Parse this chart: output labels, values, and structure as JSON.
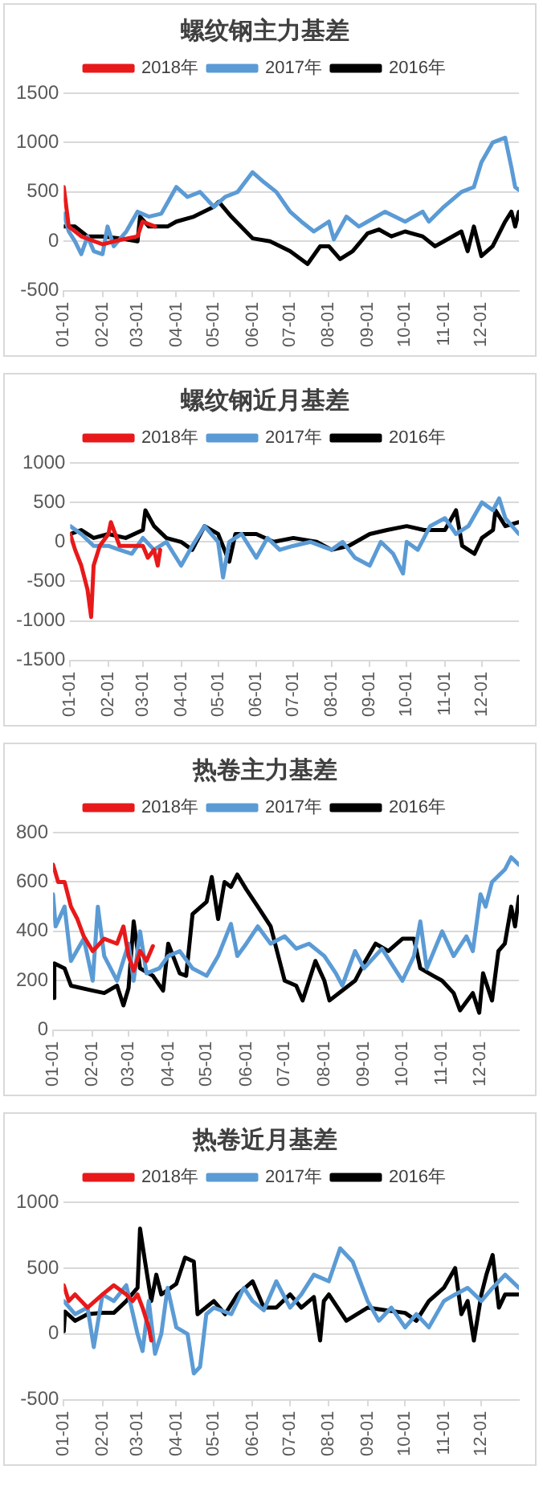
{
  "chart_data": [
    {
      "type": "line",
      "title": "螺纹钢主力基差",
      "legend": "top",
      "grid": "y",
      "marker": "none",
      "xlim": [
        "--01-01",
        "--12-31"
      ],
      "xticks": [
        {
          "value": "--01-01",
          "label": "01-01"
        },
        {
          "value": "--02-01",
          "label": "02-01"
        },
        {
          "value": "--03-01",
          "label": "03-01"
        },
        {
          "value": "--04-01",
          "label": "04-01"
        },
        {
          "value": "--05-01",
          "label": "05-01"
        },
        {
          "value": "--06-01",
          "label": "06-01"
        },
        {
          "value": "--07-01",
          "label": "07-01"
        },
        {
          "value": "--08-01",
          "label": "08-01"
        },
        {
          "value": "--09-01",
          "label": "09-01"
        },
        {
          "value": "--10-01",
          "label": "10-01"
        },
        {
          "value": "--11-01",
          "label": "11-01"
        },
        {
          "value": "--12-01",
          "label": "12-01"
        }
      ],
      "ylim": [
        -500,
        1500
      ],
      "yticks": [
        -500,
        0,
        500,
        1000,
        1500
      ],
      "series": [
        {
          "name": "2018年",
          "color": "#e8191a",
          "x": [
            "--01-01",
            "--01-05",
            "--01-15",
            "--02-01",
            "--02-10",
            "--03-01",
            "--03-05",
            "--03-15"
          ],
          "values": [
            550,
            150,
            50,
            -30,
            0,
            50,
            200,
            150
          ]
        },
        {
          "name": "2017年",
          "color": "#5b9bd5",
          "x": [
            "--01-01",
            "--01-05",
            "--01-10",
            "--01-15",
            "--01-20",
            "--01-25",
            "--02-01",
            "--02-05",
            "--02-10",
            "--02-20",
            "--03-01",
            "--03-10",
            "--03-20",
            "--04-01",
            "--04-10",
            "--04-20",
            "--05-01",
            "--05-10",
            "--05-20",
            "--06-01",
            "--06-10",
            "--06-20",
            "--07-01",
            "--07-10",
            "--07-20",
            "--08-01",
            "--08-05",
            "--08-15",
            "--08-25",
            "--09-01",
            "--09-15",
            "--10-01",
            "--10-15",
            "--10-20",
            "--11-01",
            "--11-15",
            "--11-25",
            "--12-01",
            "--12-10",
            "--12-20",
            "--12-25",
            "--12-28",
            "--12-31"
          ],
          "values": [
            280,
            100,
            0,
            -130,
            50,
            -100,
            -130,
            150,
            -50,
            100,
            300,
            250,
            280,
            550,
            450,
            500,
            350,
            450,
            500,
            700,
            600,
            500,
            300,
            200,
            100,
            200,
            20,
            250,
            150,
            200,
            300,
            200,
            300,
            200,
            350,
            500,
            550,
            800,
            1000,
            1050,
            750,
            550,
            520
          ]
        },
        {
          "name": "2016年",
          "color": "#000000",
          "x": [
            "--01-01",
            "--01-10",
            "--01-20",
            "--02-01",
            "--02-15",
            "--03-01",
            "--03-03",
            "--03-10",
            "--03-25",
            "--04-01",
            "--04-15",
            "--05-01",
            "--05-05",
            "--05-15",
            "--06-01",
            "--06-15",
            "--07-01",
            "--07-15",
            "--07-25",
            "--08-01",
            "--08-10",
            "--08-20",
            "--09-01",
            "--09-10",
            "--09-20",
            "--10-01",
            "--10-15",
            "--10-25",
            "--11-01",
            "--11-15",
            "--11-20",
            "--11-25",
            "--12-01",
            "--12-10",
            "--12-20",
            "--12-25",
            "--12-28",
            "--12-31"
          ],
          "values": [
            150,
            150,
            50,
            50,
            30,
            0,
            250,
            150,
            150,
            200,
            250,
            350,
            400,
            250,
            30,
            0,
            -100,
            -230,
            -50,
            -50,
            -180,
            -100,
            80,
            120,
            50,
            100,
            50,
            -50,
            0,
            100,
            -100,
            150,
            -150,
            -50,
            200,
            300,
            150,
            300
          ]
        }
      ]
    },
    {
      "type": "line",
      "title": "螺纹钢近月基差",
      "legend": "top",
      "grid": "y",
      "marker": "none",
      "xlim": [
        "--01-01",
        "--12-31"
      ],
      "xticks": [
        {
          "value": "--01-01",
          "label": "01-01"
        },
        {
          "value": "--02-01",
          "label": "02-01"
        },
        {
          "value": "--03-01",
          "label": "03-01"
        },
        {
          "value": "--04-01",
          "label": "04-01"
        },
        {
          "value": "--05-01",
          "label": "05-01"
        },
        {
          "value": "--06-01",
          "label": "06-01"
        },
        {
          "value": "--07-01",
          "label": "07-01"
        },
        {
          "value": "--08-01",
          "label": "08-01"
        },
        {
          "value": "--09-01",
          "label": "09-01"
        },
        {
          "value": "--10-01",
          "label": "10-01"
        },
        {
          "value": "--11-01",
          "label": "11-01"
        },
        {
          "value": "--12-01",
          "label": "12-01"
        }
      ],
      "ylim": [
        -1500,
        1000
      ],
      "yticks": [
        -1500,
        -1000,
        -500,
        0,
        500,
        1000
      ],
      "series": [
        {
          "name": "2018年",
          "color": "#e8191a",
          "x": [
            "--01-01",
            "--01-05",
            "--01-10",
            "--01-15",
            "--01-18",
            "--01-20",
            "--01-25",
            "--02-01",
            "--02-03",
            "--02-10",
            "--02-15",
            "--03-01",
            "--03-05",
            "--03-10",
            "--03-13",
            "--03-15"
          ],
          "values": [
            100,
            -100,
            -300,
            -600,
            -950,
            -300,
            -50,
            100,
            250,
            -50,
            -50,
            -50,
            -200,
            -100,
            -300,
            -100
          ]
        },
        {
          "name": "2017年",
          "color": "#5b9bd5",
          "x": [
            "--01-01",
            "--01-10",
            "--01-20",
            "--02-01",
            "--02-10",
            "--02-20",
            "--03-01",
            "--03-10",
            "--03-20",
            "--04-01",
            "--04-10",
            "--04-20",
            "--05-01",
            "--05-05",
            "--05-10",
            "--05-20",
            "--06-01",
            "--06-10",
            "--06-20",
            "--07-01",
            "--07-15",
            "--08-01",
            "--08-10",
            "--08-20",
            "--09-01",
            "--09-10",
            "--09-20",
            "--09-28",
            "--10-01",
            "--10-10",
            "--10-20",
            "--11-01",
            "--11-10",
            "--11-20",
            "--12-01",
            "--12-10",
            "--12-15",
            "--12-20",
            "--12-31"
          ],
          "values": [
            200,
            100,
            -50,
            -50,
            -100,
            -150,
            50,
            -100,
            0,
            -300,
            -50,
            200,
            0,
            -450,
            0,
            100,
            -200,
            50,
            -100,
            -50,
            0,
            -100,
            0,
            -200,
            -300,
            0,
            -150,
            -400,
            0,
            -100,
            200,
            300,
            100,
            200,
            500,
            400,
            550,
            300,
            100
          ]
        },
        {
          "name": "2016年",
          "color": "#000000",
          "x": [
            "--01-01",
            "--01-10",
            "--01-20",
            "--02-01",
            "--02-15",
            "--03-01",
            "--03-03",
            "--03-10",
            "--03-20",
            "--04-01",
            "--04-10",
            "--04-20",
            "--05-01",
            "--05-10",
            "--05-15",
            "--06-01",
            "--06-15",
            "--07-01",
            "--07-20",
            "--08-01",
            "--08-15",
            "--09-01",
            "--09-15",
            "--10-01",
            "--10-15",
            "--11-01",
            "--11-10",
            "--11-15",
            "--11-25",
            "--12-01",
            "--12-10",
            "--12-12",
            "--12-20",
            "--12-31"
          ],
          "values": [
            100,
            150,
            50,
            100,
            50,
            150,
            400,
            200,
            50,
            0,
            -100,
            200,
            100,
            -250,
            100,
            100,
            0,
            50,
            0,
            -100,
            -50,
            100,
            150,
            200,
            150,
            150,
            400,
            -50,
            -150,
            50,
            150,
            400,
            200,
            250
          ]
        }
      ]
    },
    {
      "type": "line",
      "title": "热卷主力基差",
      "legend": "top",
      "grid": "y",
      "marker": "none",
      "xlim": [
        "--01-01",
        "--12-31"
      ],
      "xticks": [
        {
          "value": "--01-01",
          "label": "01-01"
        },
        {
          "value": "--02-01",
          "label": "02-01"
        },
        {
          "value": "--03-01",
          "label": "03-01"
        },
        {
          "value": "--04-01",
          "label": "04-01"
        },
        {
          "value": "--05-01",
          "label": "05-01"
        },
        {
          "value": "--06-01",
          "label": "06-01"
        },
        {
          "value": "--07-01",
          "label": "07-01"
        },
        {
          "value": "--08-01",
          "label": "08-01"
        },
        {
          "value": "--09-01",
          "label": "09-01"
        },
        {
          "value": "--10-01",
          "label": "10-01"
        },
        {
          "value": "--11-01",
          "label": "11-01"
        },
        {
          "value": "--12-01",
          "label": "12-01"
        }
      ],
      "ylim": [
        0,
        800
      ],
      "yticks": [
        0,
        200,
        400,
        600,
        800
      ],
      "series": [
        {
          "name": "2018年",
          "color": "#e8191a",
          "x": [
            "--01-01",
            "--01-05",
            "--01-10",
            "--01-15",
            "--01-20",
            "--01-25",
            "--02-01",
            "--02-10",
            "--02-20",
            "--02-25",
            "--03-01",
            "--03-05",
            "--03-10",
            "--03-15",
            "--03-20"
          ],
          "values": [
            670,
            600,
            600,
            500,
            450,
            380,
            320,
            370,
            350,
            420,
            300,
            240,
            320,
            280,
            340
          ]
        },
        {
          "name": "2017年",
          "color": "#5b9bd5",
          "x": [
            "--01-01",
            "--01-03",
            "--01-10",
            "--01-15",
            "--01-25",
            "--02-01",
            "--02-05",
            "--02-10",
            "--02-20",
            "--03-01",
            "--03-05",
            "--03-10",
            "--03-15",
            "--03-25",
            "--04-01",
            "--04-10",
            "--04-20",
            "--05-01",
            "--05-10",
            "--05-20",
            "--05-25",
            "--06-01",
            "--06-10",
            "--06-20",
            "--07-01",
            "--07-10",
            "--07-20",
            "--08-01",
            "--08-10",
            "--08-15",
            "--08-25",
            "--09-01",
            "--09-15",
            "--10-01",
            "--10-10",
            "--10-15",
            "--10-20",
            "--11-01",
            "--11-10",
            "--11-20",
            "--11-25",
            "--12-01",
            "--12-05",
            "--12-10",
            "--12-20",
            "--12-25",
            "--12-31"
          ],
          "values": [
            550,
            420,
            500,
            280,
            370,
            200,
            500,
            300,
            200,
            350,
            200,
            400,
            230,
            250,
            300,
            320,
            250,
            220,
            300,
            430,
            300,
            350,
            420,
            350,
            380,
            330,
            350,
            300,
            230,
            180,
            320,
            250,
            330,
            200,
            300,
            440,
            250,
            400,
            300,
            380,
            320,
            550,
            500,
            600,
            650,
            700,
            670
          ]
        },
        {
          "name": "2016年",
          "color": "#000000",
          "x": [
            "--01-01",
            "--01-02",
            "--01-10",
            "--01-15",
            "--02-01",
            "--02-10",
            "--02-20",
            "--02-25",
            "--03-01",
            "--03-05",
            "--03-10",
            "--03-20",
            "--03-28",
            "--04-01",
            "--04-10",
            "--04-15",
            "--04-20",
            "--05-01",
            "--05-05",
            "--05-10",
            "--05-15",
            "--05-20",
            "--05-25",
            "--06-01",
            "--06-10",
            "--06-20",
            "--07-01",
            "--07-10",
            "--07-15",
            "--07-25",
            "--08-01",
            "--08-05",
            "--08-15",
            "--08-25",
            "--09-01",
            "--09-10",
            "--09-20",
            "--10-01",
            "--10-10",
            "--10-15",
            "--10-25",
            "--11-01",
            "--11-10",
            "--11-15",
            "--11-25",
            "--11-30",
            "--12-03",
            "--12-10",
            "--12-15",
            "--12-20",
            "--12-25",
            "--12-28",
            "--12-31"
          ],
          "values": [
            130,
            270,
            250,
            180,
            160,
            150,
            180,
            100,
            170,
            440,
            250,
            220,
            160,
            350,
            230,
            220,
            470,
            520,
            620,
            450,
            600,
            580,
            630,
            570,
            500,
            420,
            200,
            180,
            120,
            280,
            200,
            120,
            160,
            200,
            270,
            350,
            320,
            370,
            370,
            250,
            220,
            200,
            150,
            80,
            150,
            70,
            230,
            120,
            320,
            350,
            500,
            420,
            540
          ]
        }
      ]
    },
    {
      "type": "line",
      "title": "热卷近月基差",
      "legend": "top",
      "grid": "y",
      "marker": "none",
      "xlim": [
        "--01-01",
        "--12-31"
      ],
      "xticks": [
        {
          "value": "--01-01",
          "label": "01-01"
        },
        {
          "value": "--02-01",
          "label": "02-01"
        },
        {
          "value": "--03-01",
          "label": "03-01"
        },
        {
          "value": "--04-01",
          "label": "04-01"
        },
        {
          "value": "--05-01",
          "label": "05-01"
        },
        {
          "value": "--06-01",
          "label": "06-01"
        },
        {
          "value": "--07-01",
          "label": "07-01"
        },
        {
          "value": "--08-01",
          "label": "08-01"
        },
        {
          "value": "--09-01",
          "label": "09-01"
        },
        {
          "value": "--10-01",
          "label": "10-01"
        },
        {
          "value": "--11-01",
          "label": "11-01"
        },
        {
          "value": "--12-01",
          "label": "12-01"
        }
      ],
      "ylim": [
        -500,
        1000
      ],
      "yticks": [
        -500,
        0,
        500,
        1000
      ],
      "series": [
        {
          "name": "2018年",
          "color": "#e8191a",
          "x": [
            "--01-01",
            "--01-05",
            "--01-10",
            "--01-15",
            "--01-20",
            "--02-01",
            "--02-10",
            "--02-20",
            "--02-25",
            "--03-01",
            "--03-05",
            "--03-10",
            "--03-12"
          ],
          "values": [
            370,
            250,
            300,
            250,
            200,
            300,
            370,
            300,
            250,
            300,
            200,
            50,
            -50
          ]
        },
        {
          "name": "2017年",
          "color": "#5b9bd5",
          "x": [
            "--01-01",
            "--01-10",
            "--01-20",
            "--01-25",
            "--02-01",
            "--02-10",
            "--02-20",
            "--03-01",
            "--03-05",
            "--03-10",
            "--03-15",
            "--03-20",
            "--03-25",
            "--04-01",
            "--04-10",
            "--04-15",
            "--04-20",
            "--04-25",
            "--05-01",
            "--05-15",
            "--05-25",
            "--06-01",
            "--06-10",
            "--06-20",
            "--07-01",
            "--07-10",
            "--07-20",
            "--08-01",
            "--08-10",
            "--08-20",
            "--09-01",
            "--09-10",
            "--09-20",
            "--10-01",
            "--10-10",
            "--10-20",
            "--11-01",
            "--11-10",
            "--11-20",
            "--12-01",
            "--12-10",
            "--12-20",
            "--12-31"
          ],
          "values": [
            250,
            150,
            200,
            -100,
            300,
            250,
            370,
            0,
            -130,
            250,
            -150,
            0,
            350,
            50,
            0,
            -300,
            -250,
            150,
            200,
            150,
            350,
            250,
            180,
            400,
            200,
            300,
            450,
            400,
            650,
            550,
            250,
            100,
            200,
            50,
            150,
            50,
            250,
            300,
            350,
            250,
            350,
            450,
            350
          ]
        },
        {
          "name": "2016年",
          "color": "#000000",
          "x": [
            "--01-01",
            "--01-02",
            "--01-10",
            "--01-20",
            "--02-01",
            "--02-10",
            "--02-20",
            "--03-01",
            "--03-03",
            "--03-07",
            "--03-12",
            "--03-16",
            "--03-20",
            "--04-01",
            "--04-08",
            "--04-15",
            "--04-18",
            "--05-01",
            "--05-10",
            "--05-20",
            "--06-01",
            "--06-10",
            "--06-20",
            "--07-01",
            "--07-10",
            "--07-20",
            "--07-25",
            "--07-28",
            "--08-01",
            "--08-15",
            "--09-01",
            "--09-15",
            "--10-01",
            "--10-10",
            "--10-20",
            "--11-01",
            "--11-10",
            "--11-15",
            "--11-20",
            "--11-25",
            "--12-01",
            "--12-05",
            "--12-10",
            "--12-15",
            "--12-20",
            "--12-31"
          ],
          "values": [
            20,
            170,
            100,
            150,
            160,
            160,
            250,
            350,
            800,
            550,
            250,
            450,
            300,
            380,
            580,
            550,
            150,
            250,
            150,
            300,
            400,
            200,
            200,
            300,
            200,
            280,
            -50,
            250,
            300,
            100,
            200,
            180,
            160,
            100,
            250,
            350,
            500,
            150,
            250,
            -50,
            300,
            450,
            600,
            200,
            300,
            300
          ]
        }
      ]
    }
  ]
}
